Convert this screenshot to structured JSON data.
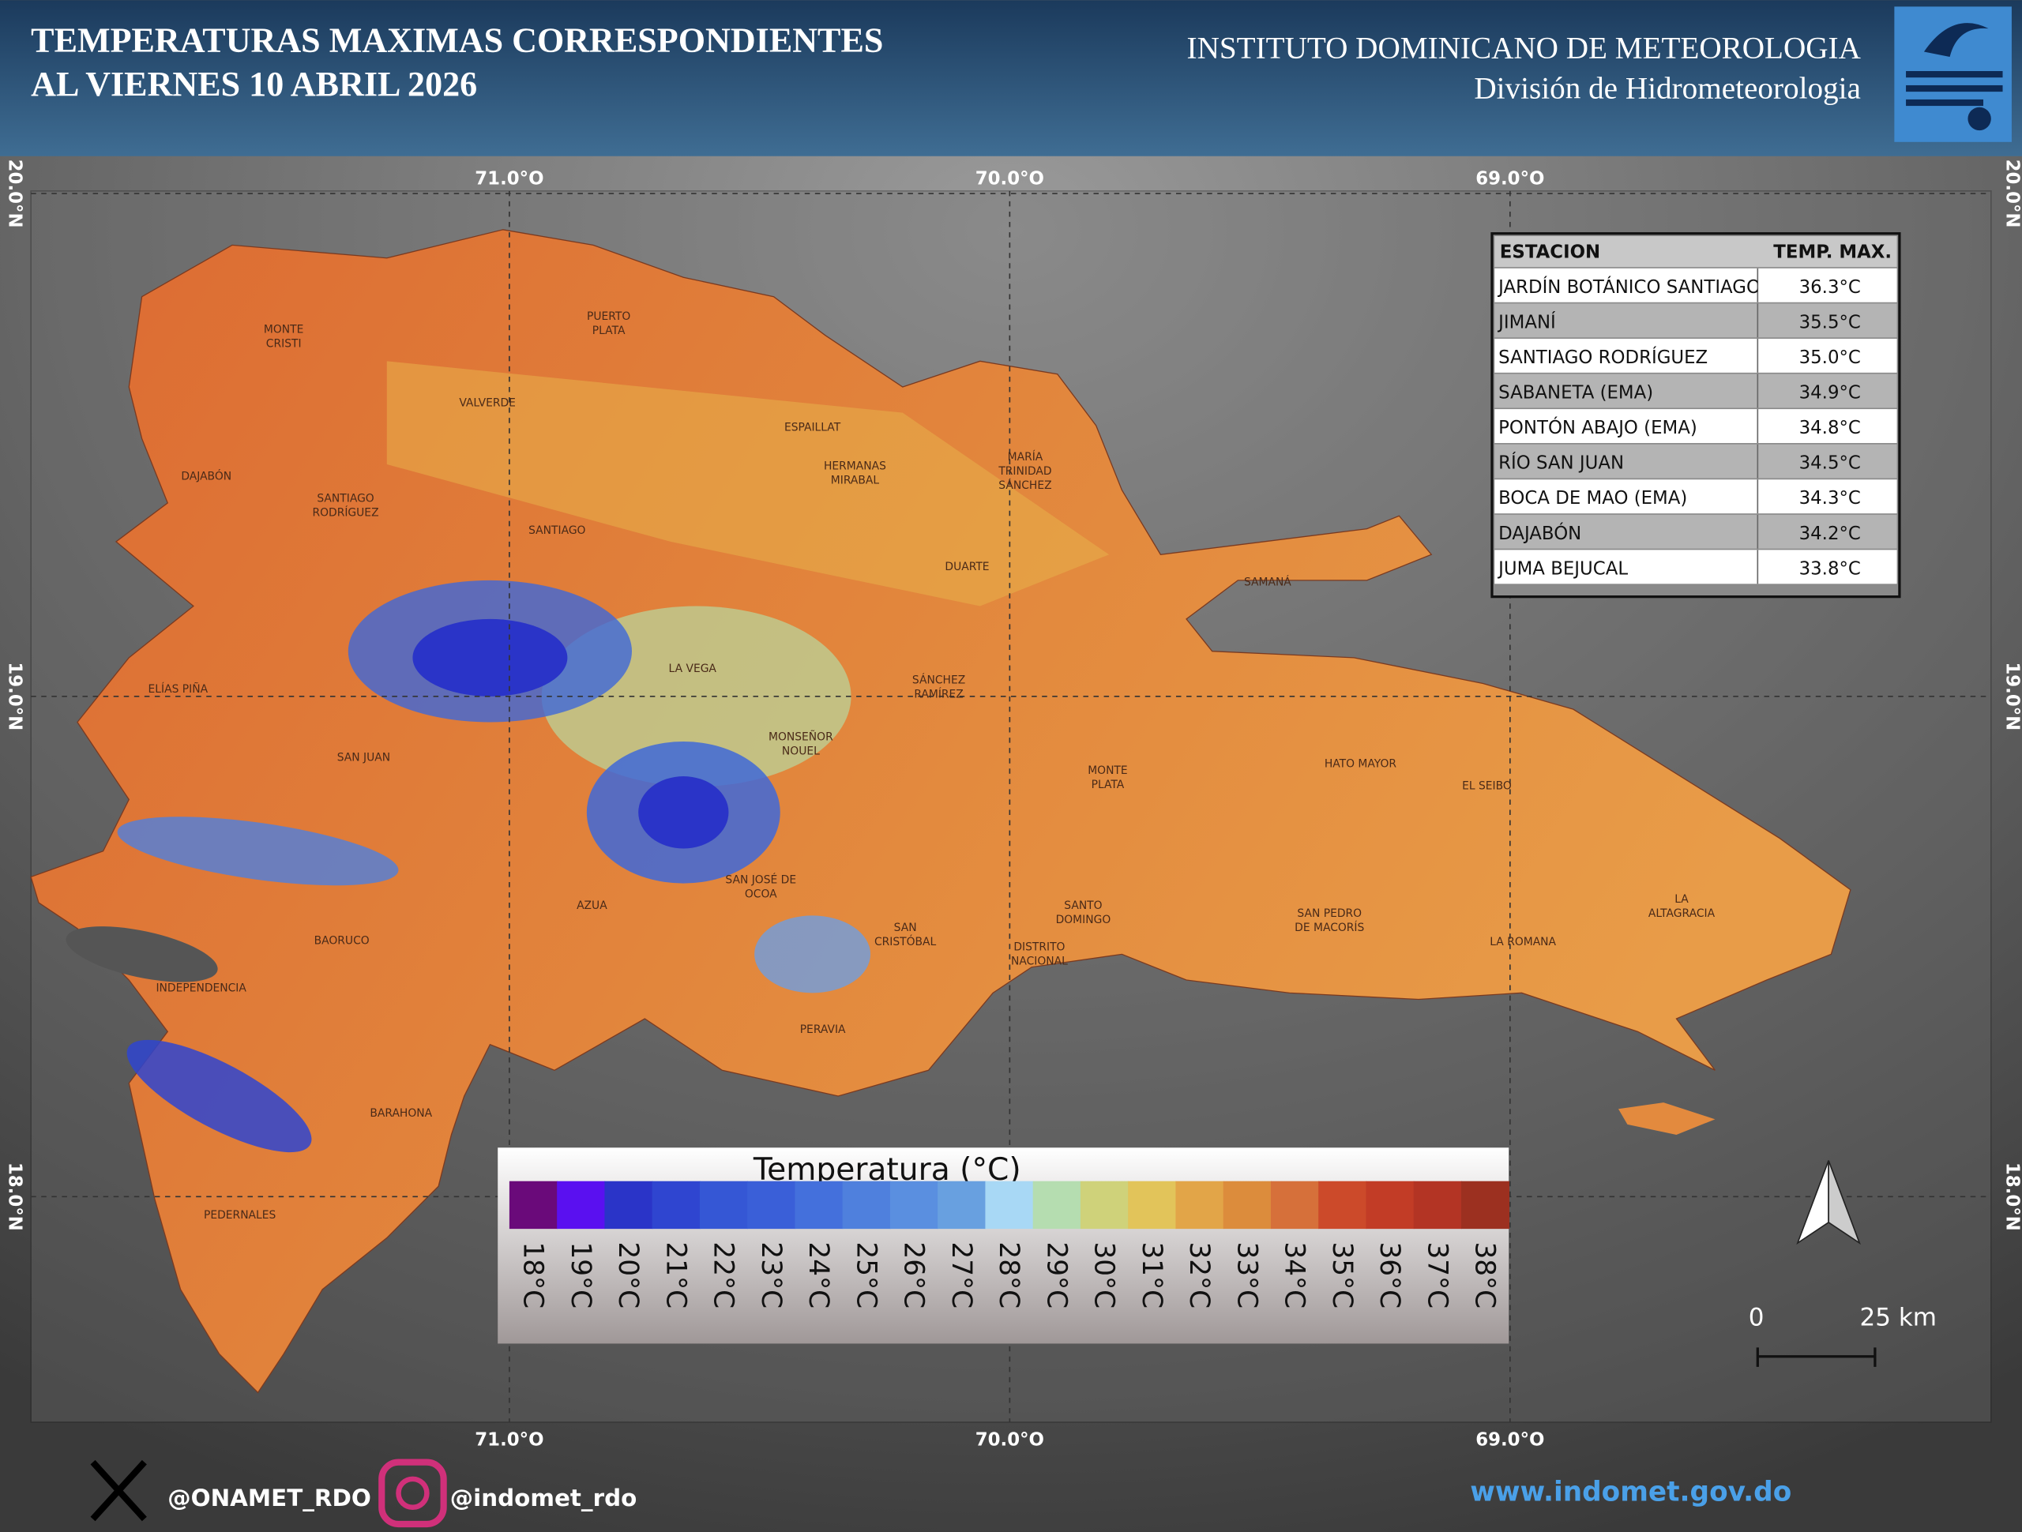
{
  "header": {
    "title_lines": [
      "TEMPERATURAS MAXIMAS CORRESPONDIENTES",
      "AL VIERNES 10  ABRIL 2026"
    ],
    "institute": "INSTITUTO DOMINICANO DE METEOROLOGIA",
    "division": "División de Hidrometeorologia"
  },
  "map": {
    "longitudes": [
      "71.0°O",
      "70.0°O",
      "69.0°O"
    ],
    "latitudes": [
      "20.0°N",
      "19.0°N",
      "18.0°N"
    ],
    "provinces": [
      [
        "MONTE",
        "CRISTI"
      ],
      [
        "PUERTO",
        "PLATA"
      ],
      [
        "VALVERDE"
      ],
      [
        "ESPAILLAT"
      ],
      [
        "HERMANAS",
        "MIRABAL"
      ],
      [
        "MARÍA",
        "TRINIDAD",
        "SÁNCHEZ"
      ],
      [
        "DAJABÓN"
      ],
      [
        "SANTIAGO",
        "RODRÍGUEZ"
      ],
      [
        "SANTIAGO"
      ],
      [
        "DUARTE"
      ],
      [
        "SAMANÁ"
      ],
      [
        "ELÍAS PIÑA"
      ],
      [
        "LA VEGA"
      ],
      [
        "SÁNCHEZ",
        "RAMÍREZ"
      ],
      [
        "MONSEÑOR",
        "NOUEL"
      ],
      [
        "SAN JUAN"
      ],
      [
        "MONTE",
        "PLATA"
      ],
      [
        "HATO MAYOR"
      ],
      [
        "EL SEIBO"
      ],
      [
        "SAN JOSÉ DE",
        "OCOA"
      ],
      [
        "AZUA"
      ],
      [
        "SANTO",
        "DOMINGO"
      ],
      [
        "SAN PEDRO",
        "DE MACORÍS"
      ],
      [
        "LA",
        "ALTAGRACIA"
      ],
      [
        "SAN",
        "CRISTÓBAL"
      ],
      [
        "DISTRITO",
        "NACIONAL"
      ],
      [
        "BAORUCO"
      ],
      [
        "LA ROMANA"
      ],
      [
        "INDEPENDENCIA"
      ],
      [
        "PERAVIA"
      ],
      [
        "BARAHONA"
      ],
      [
        "PEDERNALES"
      ]
    ],
    "scale_labels": [
      "0",
      "25 km"
    ]
  },
  "table": {
    "header": [
      "ESTACION",
      "TEMP. MAX."
    ],
    "rows": [
      [
        "JARDÍN BOTÁNICO SANTIAGO",
        "36.3°C"
      ],
      [
        "JIMANÍ",
        "35.5°C"
      ],
      [
        "SANTIAGO RODRÍGUEZ",
        "35.0°C"
      ],
      [
        "SABANETA (EMA)",
        "34.9°C"
      ],
      [
        "PONTÓN ABAJO (EMA)",
        "34.8°C"
      ],
      [
        "RÍO SAN JUAN",
        "34.5°C"
      ],
      [
        "BOCA DE MAO (EMA)",
        "34.3°C"
      ],
      [
        "DAJABÓN",
        "34.2°C"
      ],
      [
        "JUMA BEJUCAL",
        "33.8°C"
      ]
    ]
  },
  "legend": {
    "title": "Temperatura (°C)",
    "labels": [
      "18°C",
      "19°C",
      "20°C",
      "21°C",
      "22°C",
      "23°C",
      "24°C",
      "25°C",
      "26°C",
      "27°C",
      "28°C",
      "29°C",
      "30°C",
      "31°C",
      "32°C",
      "33°C",
      "34°C",
      "35°C",
      "36°C",
      "37°C",
      "38°C"
    ],
    "colors": [
      "#6a0a7a",
      "#5a10f0",
      "#2a34c8",
      "#2f45d0",
      "#3557d5",
      "#3a5fd8",
      "#4470dc",
      "#4f80dd",
      "#5a8fe0",
      "#68a0e0",
      "#a8d8f5",
      "#b5ddb0",
      "#cfd27a",
      "#e2c45a",
      "#e2a548",
      "#dc8c3c",
      "#d6703a",
      "#cc4a2a",
      "#c23c26",
      "#b33424",
      "#9c3020"
    ]
  },
  "footer": {
    "x_handle": "@ONAMET_RDO",
    "instagram_handle": "@indomet_rdo",
    "website": "www.indomet.gov.do"
  }
}
